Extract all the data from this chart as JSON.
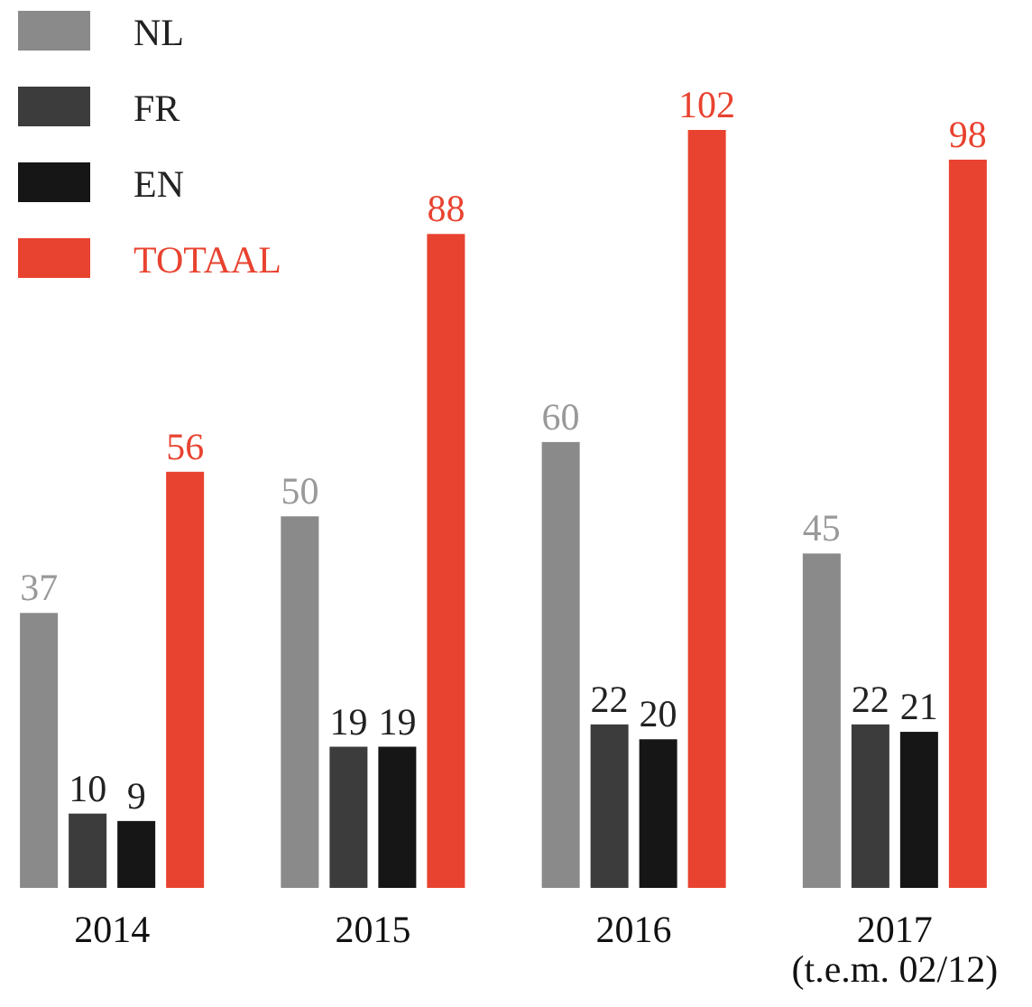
{
  "chart_data": {
    "type": "bar",
    "categories": [
      "2014",
      "2015",
      "2016",
      "2017\n(t.e.m. 02/12)"
    ],
    "series": [
      {
        "name": "NL",
        "color": "#8a8a8a",
        "values": [
          37,
          50,
          60,
          45
        ]
      },
      {
        "name": "FR",
        "color": "#3c3c3c",
        "values": [
          10,
          19,
          22,
          22
        ]
      },
      {
        "name": "EN",
        "color": "#161616",
        "values": [
          9,
          19,
          20,
          21
        ]
      },
      {
        "name": "TOTAAL",
        "color": "#e84330",
        "values": [
          56,
          88,
          102,
          98
        ]
      }
    ],
    "data_labels": true,
    "legend": "top left",
    "grid": false
  }
}
